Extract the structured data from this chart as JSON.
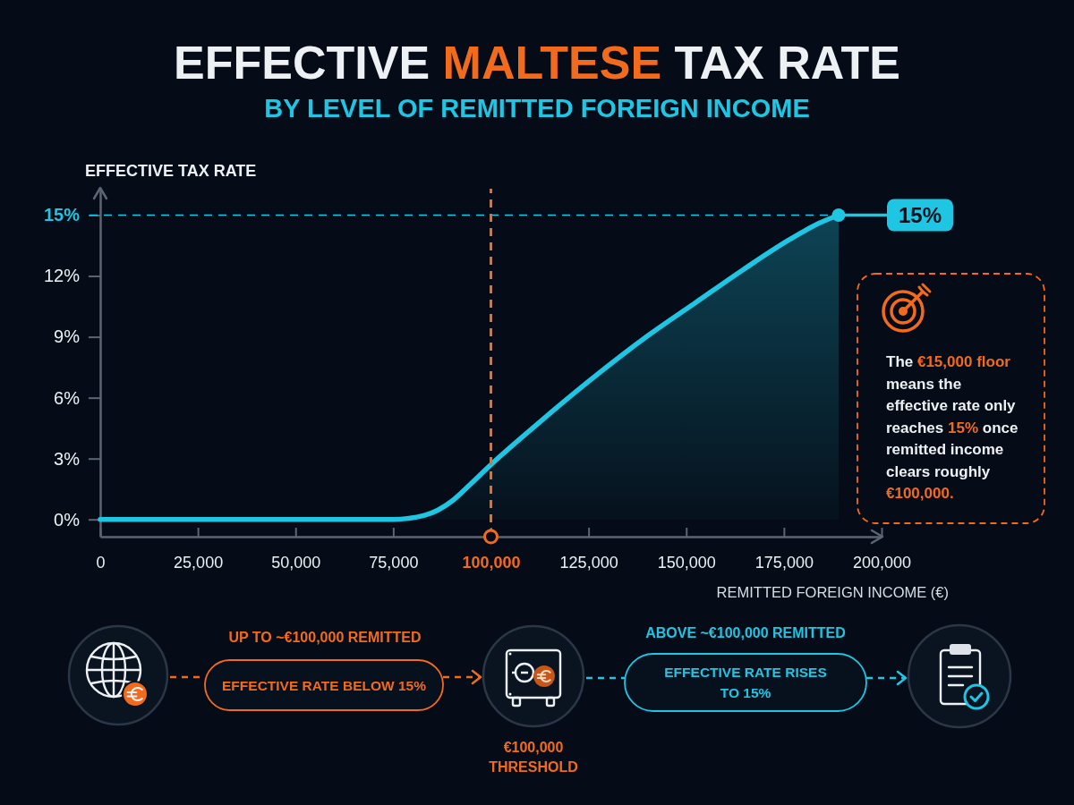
{
  "chart_data": {
    "type": "area",
    "title": "EFFECTIVE MALTESE TAX RATE",
    "subtitle": "BY LEVEL OF REMITTED FOREIGN INCOME",
    "xlabel": "REMITTED FOREIGN INCOME (€)",
    "ylabel": "EFFECTIVE TAX RATE",
    "x": [
      0,
      25000,
      50000,
      75000,
      83000,
      90000,
      94000,
      100000,
      112500,
      125000,
      140500,
      152500,
      164500,
      176500,
      184000,
      189000
    ],
    "series": [
      {
        "color": "#1fc6e3",
        "values": [
          0,
          0,
          0,
          0,
          0.2,
          0.9,
          1.6,
          2.7,
          4.8,
          6.8,
          9.1,
          10.7,
          12.3,
          13.8,
          14.6,
          15
        ]
      }
    ],
    "xlim": [
      0,
      200000
    ],
    "ylim": [
      -0.85,
      16.3
    ],
    "xticks": [
      0,
      {
        "value": 25000,
        "label": "25,000"
      },
      {
        "value": 50000,
        "label": "50,000"
      },
      {
        "value": 75000,
        "label": "75,000"
      },
      {
        "value": 100000,
        "label": "100,000"
      },
      {
        "value": 125000,
        "label": "125,000"
      },
      {
        "value": 150000,
        "label": "150,000"
      },
      {
        "value": 175000,
        "label": "175,000"
      },
      {
        "value": 200000,
        "label": "200,000"
      }
    ],
    "yticks": [
      {
        "value": 0,
        "label": "0%"
      },
      {
        "value": 3,
        "label": "3%"
      },
      {
        "value": 6,
        "label": "6%"
      },
      {
        "value": 9,
        "label": "9%"
      },
      {
        "value": 12,
        "label": "12%"
      },
      {
        "value": 15,
        "label": "15%"
      }
    ],
    "ref_lines": [
      {
        "axis": "y",
        "value": 15,
        "color": "#1fc6e3",
        "line_style": "dashed"
      },
      {
        "axis": "x",
        "value": 100000,
        "color": "#f26b1d",
        "line_style": "dashed"
      }
    ],
    "annotations": [
      {
        "text": "15%",
        "x": 189000,
        "y": 15
      },
      "The €15,000 floor means the effective rate only reaches 15% once remitted income clears roughly €100,000.",
      "UP TO ~€100,000 REMITTED",
      "EFFECTIVE RATE BELOW 15%",
      "€100,000 THRESHOLD",
      "ABOVE ~€100,000 REMITTED",
      "EFFECTIVE RATE RISES TO 15%"
    ]
  }
}
